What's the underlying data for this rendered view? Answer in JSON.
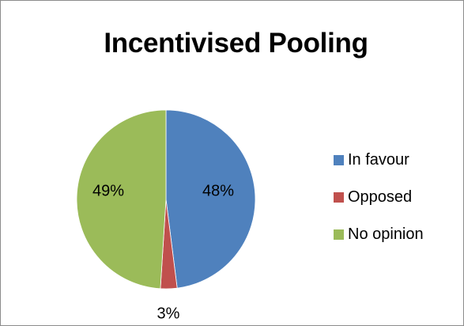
{
  "chart_data": {
    "type": "pie",
    "title": "Incentivised Pooling",
    "categories": [
      "In favour",
      "Opposed",
      "No opinion"
    ],
    "values": [
      48,
      3,
      49
    ],
    "labels": [
      "48%",
      "3%",
      "49%"
    ],
    "colors": [
      "#4F81BD",
      "#C0504D",
      "#9BBB59"
    ],
    "start_angle_deg": 0,
    "direction": "clockwise",
    "legend": {
      "position": "right",
      "entries": [
        "In favour",
        "Opposed",
        "No opinion"
      ]
    }
  }
}
